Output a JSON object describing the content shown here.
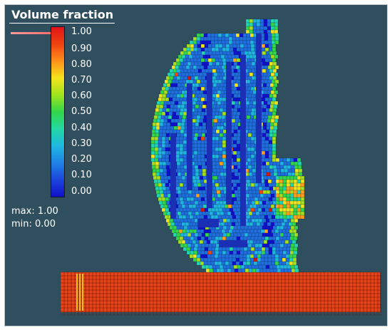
{
  "legend": {
    "title": "Volume fraction",
    "ticks": [
      "1.00",
      "0.90",
      "0.80",
      "0.70",
      "0.60",
      "0.50",
      "0.40",
      "0.30",
      "0.20",
      "0.10",
      "0.00"
    ],
    "stats": {
      "max": "max: 1.00",
      "min": "min: 0.00"
    }
  },
  "colors": {
    "background": "#2f4f5e",
    "colormap": [
      "#1010d0",
      "#1f6fe0",
      "#1fb7e0",
      "#22d6b0",
      "#33d84a",
      "#a6e020",
      "#f0e61e",
      "#ffa21a",
      "#f04a10",
      "#d01a10"
    ],
    "substrate": "#e8431a"
  }
}
